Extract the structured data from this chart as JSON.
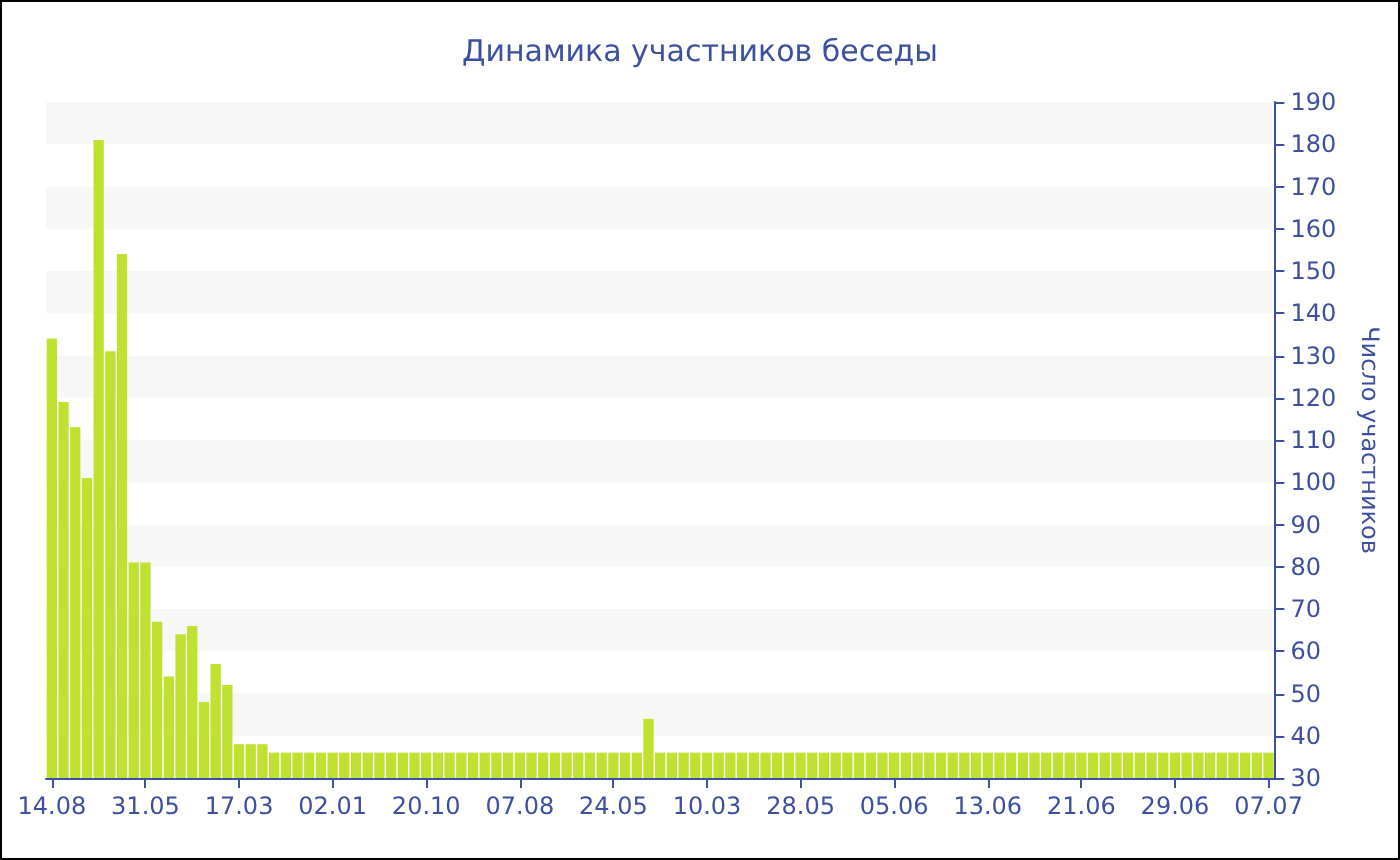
{
  "chart_data": {
    "type": "bar",
    "title": "Динамика участников беседы",
    "ylabel": "Число участников",
    "color": "#bfe12f",
    "categories": [
      "14.08",
      null,
      null,
      null,
      null,
      null,
      null,
      null,
      "31.05",
      null,
      null,
      null,
      null,
      null,
      null,
      null,
      "17.03",
      null,
      null,
      null,
      null,
      null,
      null,
      null,
      "02.01",
      null,
      null,
      null,
      null,
      null,
      null,
      null,
      "20.10",
      null,
      null,
      null,
      null,
      null,
      null,
      null,
      "07.08",
      null,
      null,
      null,
      null,
      null,
      null,
      null,
      "24.05",
      null,
      null,
      null,
      null,
      null,
      null,
      null,
      "10.03",
      null,
      null,
      null,
      null,
      null,
      null,
      null,
      "28.05",
      null,
      null,
      null,
      null,
      null,
      null,
      null,
      "05.06",
      null,
      null,
      null,
      null,
      null,
      null,
      null,
      "13.06",
      null,
      null,
      null,
      null,
      null,
      null,
      null,
      "21.06",
      null,
      null,
      null,
      null,
      null,
      null,
      null,
      "29.06",
      null,
      null,
      null,
      null,
      null,
      null,
      null,
      "07.07"
    ],
    "values": [
      134,
      119,
      113,
      101,
      181,
      131,
      154,
      81,
      81,
      67,
      54,
      64,
      66,
      48,
      57,
      52,
      38,
      38,
      38,
      36,
      36,
      36,
      36,
      36,
      36,
      36,
      36,
      36,
      36,
      36,
      36,
      36,
      36,
      36,
      36,
      36,
      36,
      36,
      36,
      36,
      36,
      36,
      36,
      36,
      36,
      36,
      36,
      36,
      36,
      36,
      36,
      44,
      36,
      36,
      36,
      36,
      36,
      36,
      36,
      36,
      36,
      36,
      36,
      36,
      36,
      36,
      36,
      36,
      36,
      36,
      36,
      36,
      36,
      36,
      36,
      36,
      36,
      36,
      36,
      36,
      36,
      36,
      36,
      36,
      36,
      36,
      36,
      36,
      36,
      36,
      36,
      36,
      36,
      36,
      36,
      36,
      36,
      36,
      36,
      36,
      36,
      36,
      36,
      36,
      36
    ],
    "ylim": [
      30,
      190
    ],
    "yticks": [
      30,
      40,
      50,
      60,
      70,
      80,
      90,
      100,
      110,
      120,
      130,
      140,
      150,
      160,
      170,
      180,
      190
    ]
  }
}
